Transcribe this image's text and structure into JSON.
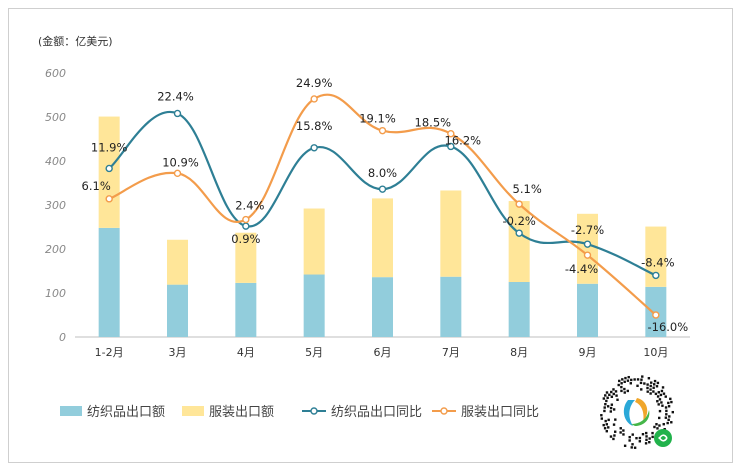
{
  "chart_data": {
    "type": "bar+line",
    "unit_label": "(金额：亿美元)",
    "categories": [
      "1-2月",
      "3月",
      "4月",
      "5月",
      "6月",
      "7月",
      "8月",
      "9月",
      "10月"
    ],
    "yticks": [
      "0",
      "100",
      "200",
      "300",
      "400",
      "500",
      "600"
    ],
    "ylim": [
      0,
      600
    ],
    "bar_series": [
      {
        "name": "纺织品出口额",
        "color": "#92cddc",
        "values": [
          248,
          119,
          123,
          142,
          136,
          137,
          125,
          121,
          114
        ]
      },
      {
        "name": "服装出口额",
        "color": "#ffe699",
        "values": [
          253,
          102,
          114,
          150,
          179,
          196,
          184,
          159,
          137
        ]
      }
    ],
    "line_series": [
      {
        "name": "纺织品出口同比",
        "color": "#2e7f95",
        "values": [
          11.9,
          22.4,
          0.9,
          15.8,
          8.0,
          16.2,
          -0.2,
          -2.7,
          -8.4
        ],
        "labels": [
          "11.9%",
          "22.4%",
          "0.9%",
          "15.8%",
          "8.0%",
          "16.2%",
          "-0.2%",
          "-2.7%",
          "-8.4%"
        ],
        "plot_y": [
          383,
          508,
          252,
          430,
          336,
          433,
          236,
          211,
          140
        ]
      },
      {
        "name": "服装出口同比",
        "color": "#f39c4b",
        "values": [
          6.1,
          10.9,
          2.4,
          24.9,
          19.1,
          18.5,
          5.1,
          -4.4,
          -16.0
        ],
        "labels": [
          "6.1%",
          "10.9%",
          "2.4%",
          "24.9%",
          "19.1%",
          "18.5%",
          "5.1%",
          "-4.4%",
          "-16.0%"
        ],
        "plot_y": [
          314,
          372,
          267,
          541,
          469,
          462,
          302,
          186,
          50
        ]
      }
    ],
    "legend": [
      "纺织品出口额",
      "服装出口额",
      "纺织品出口同比",
      "服装出口同比"
    ],
    "legend_position": "bottom-left",
    "grid": false
  },
  "decorations": {
    "qr_code": "mini-program-qr-code"
  }
}
